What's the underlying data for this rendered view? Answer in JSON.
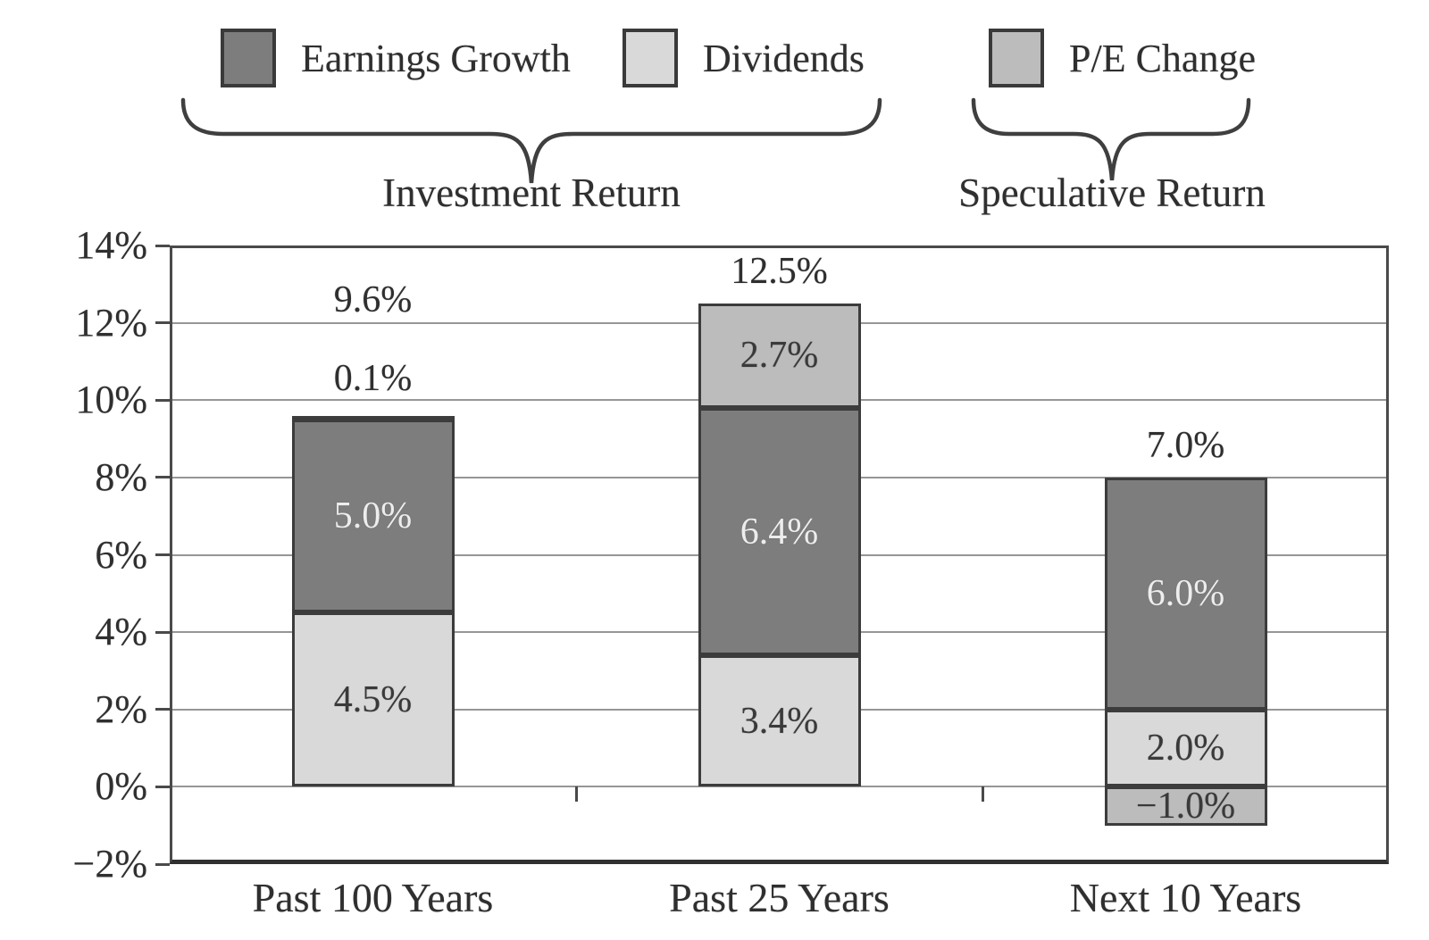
{
  "legend": {
    "items": [
      {
        "label": "Earnings Growth",
        "color": "#7d7d7d"
      },
      {
        "label": "Dividends",
        "color": "#d9d9d9"
      },
      {
        "label": "P/E Change",
        "color": "#bcbcbc"
      }
    ],
    "groups": [
      {
        "label": "Investment Return"
      },
      {
        "label": "Speculative Return"
      }
    ]
  },
  "chart_data": {
    "type": "bar",
    "stacked": true,
    "title": "",
    "xlabel": "",
    "ylabel": "",
    "categories": [
      "Past 100 Years",
      "Past 25 Years",
      "Next 10 Years"
    ],
    "series": [
      {
        "name": "Dividends",
        "values": [
          4.5,
          3.4,
          2.0
        ],
        "labels": [
          "4.5%",
          "3.4%",
          "2.0%"
        ],
        "color": "#d9d9d9",
        "label_color": "#3a3a3a"
      },
      {
        "name": "Earnings Growth",
        "values": [
          5.0,
          6.4,
          6.0
        ],
        "labels": [
          "5.0%",
          "6.4%",
          "6.0%"
        ],
        "color": "#7d7d7d",
        "label_color": "#ededed"
      },
      {
        "name": "P/E Change",
        "values": [
          0.1,
          2.7,
          -1.0
        ],
        "labels": [
          "0.1%",
          "2.7%",
          "−1.0%"
        ],
        "color": "#bcbcbc",
        "label_color": "#3a3a3a"
      }
    ],
    "totals": [
      "9.6%",
      "12.5%",
      "7.0%"
    ],
    "ylim": [
      -2,
      14
    ],
    "yticks": [
      {
        "value": 14,
        "label": "14%"
      },
      {
        "value": 12,
        "label": "12%"
      },
      {
        "value": 10,
        "label": "10%"
      },
      {
        "value": 8,
        "label": "8%"
      },
      {
        "value": 6,
        "label": "6%"
      },
      {
        "value": 4,
        "label": "4%"
      },
      {
        "value": 2,
        "label": "2%"
      },
      {
        "value": 0,
        "label": "0%"
      },
      {
        "value": -2,
        "label": "−2%"
      }
    ],
    "grid": true,
    "legend_position": "top"
  }
}
